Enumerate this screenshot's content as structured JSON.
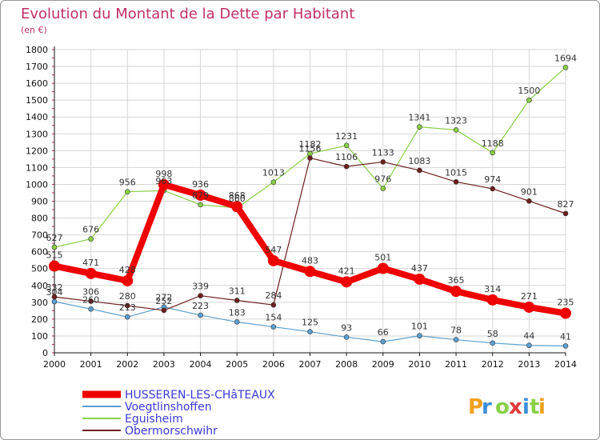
{
  "chart_data": {
    "type": "line",
    "title": "Evolution du Montant de la Dette par Habitant",
    "subtitle": "(en €)",
    "xlabel": "",
    "ylabel": "",
    "categories": [
      "2000",
      "2001",
      "2002",
      "2003",
      "2004",
      "2005",
      "2006",
      "2007",
      "2008",
      "2009",
      "2010",
      "2011",
      "2012",
      "2013",
      "2014"
    ],
    "ylim": [
      0,
      1800
    ],
    "yticks": [
      0,
      100,
      200,
      300,
      400,
      500,
      600,
      700,
      800,
      900,
      1000,
      1100,
      1200,
      1300,
      1400,
      1500,
      1600,
      1700,
      1800
    ],
    "grid": true,
    "legend_position": "bottom-left",
    "series": [
      {
        "name": "Voegtlinshoffen",
        "color": "#5c9fd0",
        "values": [
          304,
          260,
          213,
          272,
          223,
          183,
          154,
          125,
          93,
          66,
          101,
          78,
          58,
          44,
          41
        ],
        "labels": [
          "304",
          "260",
          "213",
          "272",
          "223",
          "183",
          "154",
          "125",
          "93",
          "66",
          "101",
          "78",
          "58",
          "44",
          "41"
        ]
      },
      {
        "name": "Eguisheim",
        "color": "#8ad046",
        "values": [
          627,
          676,
          956,
          963,
          879,
          860,
          1013,
          1182,
          1231,
          976,
          1341,
          1323,
          1188,
          1500,
          1694
        ],
        "labels": [
          "627",
          "676",
          "956",
          "963",
          "879",
          "860",
          "1013",
          "1182",
          "1231",
          "976",
          "1341",
          "1323",
          "1188",
          "1500",
          "1694"
        ]
      },
      {
        "name": "Obermorschwihr",
        "color": "#6e1e1e",
        "values": [
          332,
          306,
          280,
          252,
          339,
          311,
          284,
          1156,
          1106,
          1133,
          1083,
          1015,
          974,
          901,
          827
        ],
        "labels": [
          "332",
          "306",
          "280",
          "252",
          "339",
          "311",
          "284",
          "1156",
          "1106",
          "1133",
          "1083",
          "1015",
          "974",
          "901",
          "827"
        ]
      },
      {
        "name": "HUSSEREN-LES-CHâTEAUX",
        "color": "#ee0000",
        "values": [
          515,
          471,
          428,
          998,
          936,
          868,
          547,
          483,
          421,
          501,
          437,
          365,
          314,
          271,
          235
        ],
        "labels": [
          "515",
          "471",
          "428",
          "998",
          "936",
          "868",
          "547",
          "483",
          "421",
          "501",
          "437",
          "365",
          "314",
          "271",
          "235"
        ]
      }
    ],
    "legend": [
      "HUSSEREN-LES-CHâTEAUX",
      "Voegtlinshoffen",
      "Eguisheim",
      "Obermorschwihr"
    ]
  },
  "logo": {
    "text": "Proxiti",
    "letter_colors": [
      "#f0a020",
      "#3a8ed8",
      "#8ad046",
      "#e03a3a",
      "#3a8ed8",
      "#8ad046",
      "#f0a020"
    ]
  },
  "colors": {
    "title": "#c0306a",
    "grid": "#d6d6d6",
    "axis": "#111111",
    "legend_text": "#3a3ad8",
    "tick_marks": "#c0306a"
  }
}
